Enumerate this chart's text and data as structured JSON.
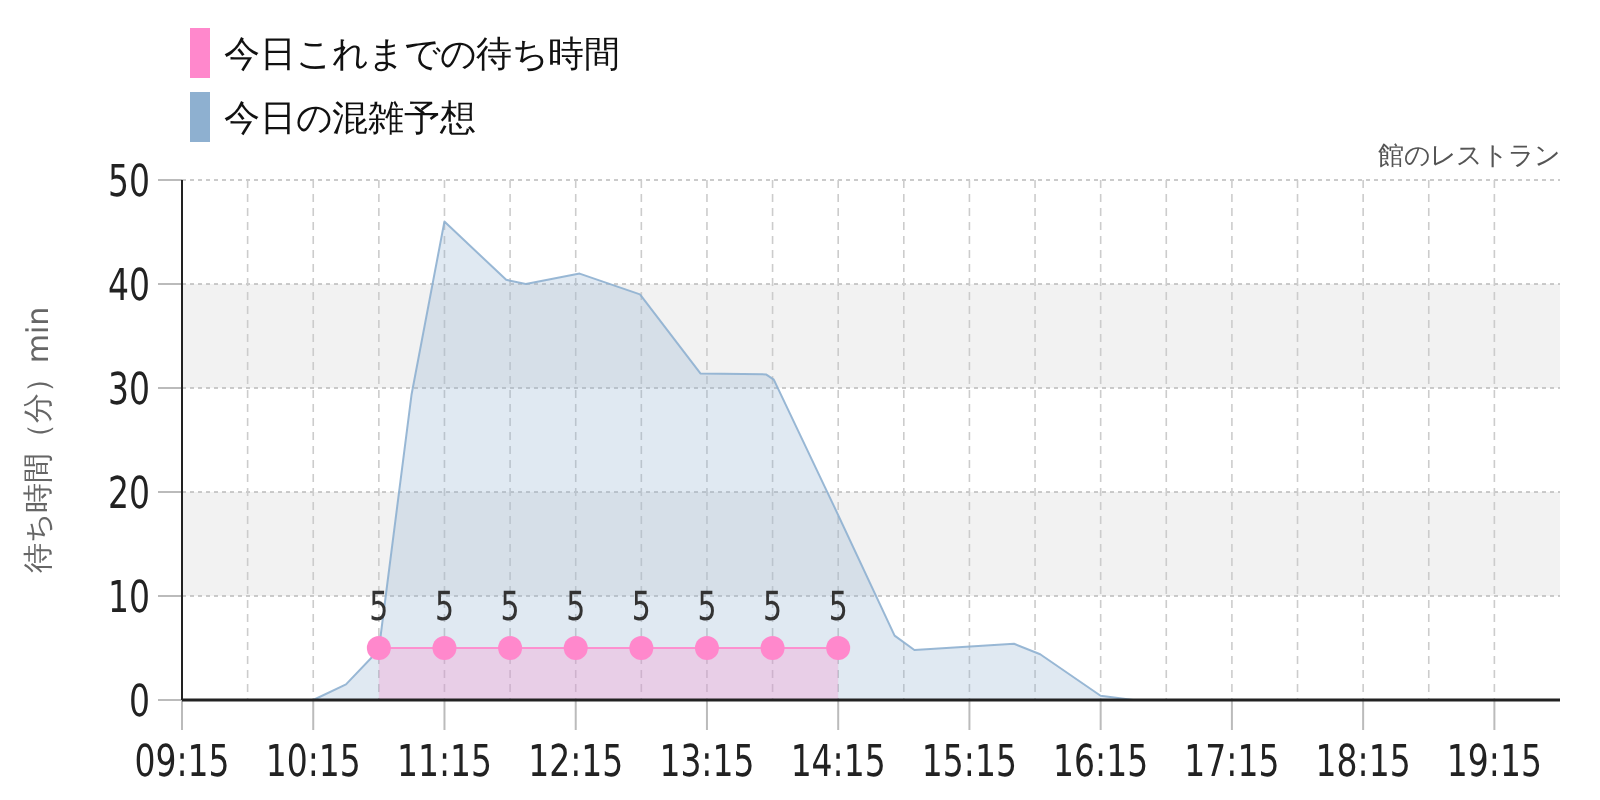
{
  "chart_data": {
    "type": "area",
    "title": "館のレストラン",
    "ylabel": "待ち時間（分）min",
    "xlim": [
      9.25,
      19.75
    ],
    "ylim": [
      0,
      50
    ],
    "yticks": [
      0,
      10,
      20,
      30,
      40,
      50
    ],
    "xticks": [
      {
        "value": 9.25,
        "label": "09:15"
      },
      {
        "value": 9.75,
        "label": null
      },
      {
        "value": 10.25,
        "label": "10:15"
      },
      {
        "value": 10.75,
        "label": null
      },
      {
        "value": 11.25,
        "label": "11:15"
      },
      {
        "value": 11.75,
        "label": null
      },
      {
        "value": 12.25,
        "label": "12:15"
      },
      {
        "value": 12.75,
        "label": null
      },
      {
        "value": 13.25,
        "label": "13:15"
      },
      {
        "value": 13.75,
        "label": null
      },
      {
        "value": 14.25,
        "label": "14:15"
      },
      {
        "value": 14.75,
        "label": null
      },
      {
        "value": 15.25,
        "label": "15:15"
      },
      {
        "value": 15.75,
        "label": null
      },
      {
        "value": 16.25,
        "label": "16:15"
      },
      {
        "value": 16.75,
        "label": null
      },
      {
        "value": 17.25,
        "label": "17:15"
      },
      {
        "value": 17.75,
        "label": null
      },
      {
        "value": 18.25,
        "label": "18:15"
      },
      {
        "value": 18.75,
        "label": null
      },
      {
        "value": 19.25,
        "label": "19:15"
      }
    ],
    "bands": [
      {
        "axis": "y",
        "from": 10,
        "to": 20,
        "color": "#f2f2f2"
      },
      {
        "axis": "y",
        "from": 30,
        "to": 40,
        "color": "#f2f2f2"
      }
    ],
    "grid": true,
    "legend": "top left",
    "series": [
      {
        "name": "今日これまでの待ち時間",
        "color": "#ff88cc",
        "marker": "circle",
        "data_labels": true,
        "x": [
          10.75,
          11.25,
          11.75,
          12.25,
          12.75,
          13.25,
          13.75,
          14.25
        ],
        "values": [
          5,
          5,
          5,
          5,
          5,
          5,
          5,
          5
        ]
      },
      {
        "name": "今日の混雑予想",
        "color": "#8eb0d0",
        "marker": "none",
        "x": [
          9.25,
          9.75,
          10.25,
          10.5,
          10.75,
          11.0,
          11.25,
          11.72,
          11.87,
          12.28,
          12.74,
          13.2,
          13.7,
          13.76,
          14.22,
          14.68,
          14.83,
          15.59,
          15.79,
          16.25,
          16.5,
          17.25,
          18.25,
          19.25,
          19.75
        ],
        "values": [
          0,
          0,
          0,
          1.5,
          4.8,
          29.4,
          46,
          40.4,
          40,
          41,
          39,
          31.4,
          31.3,
          30.8,
          18.6,
          6.2,
          4.8,
          5.4,
          4.4,
          0.4,
          0,
          0,
          0,
          0,
          0
        ]
      }
    ]
  }
}
